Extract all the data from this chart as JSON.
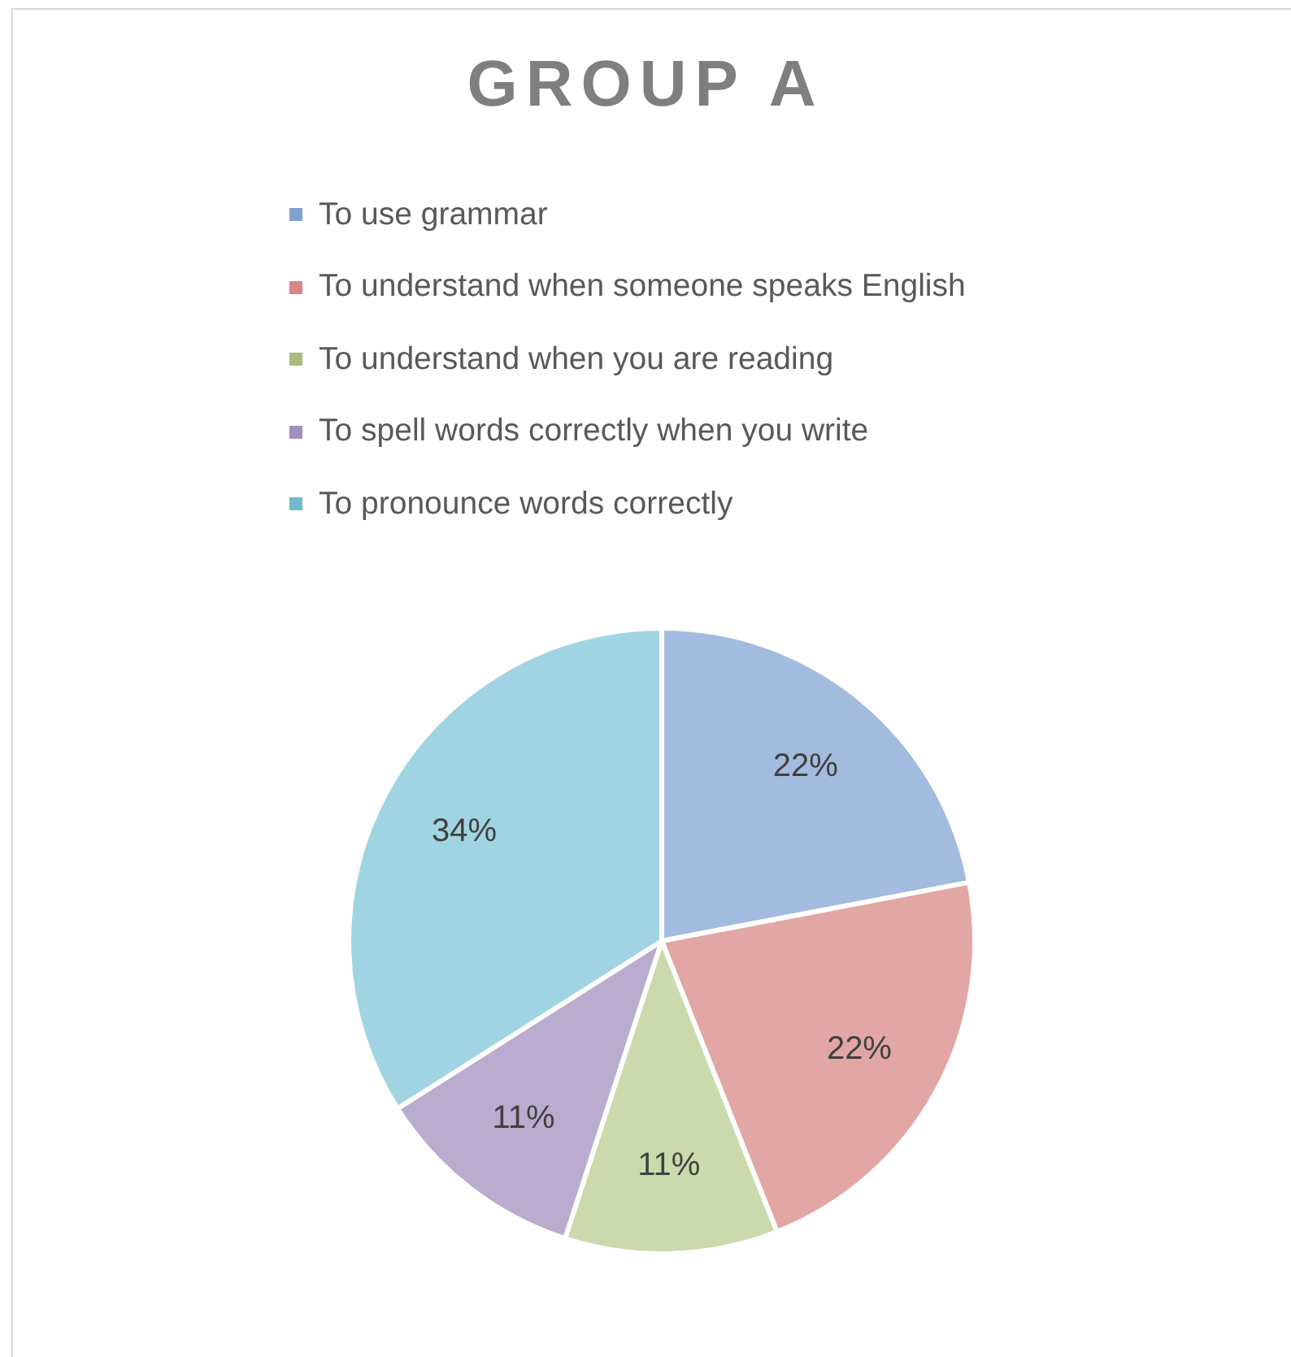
{
  "chart_data": {
    "type": "pie",
    "title": "GROUP A",
    "categories": [
      "To use grammar",
      "To understand when someone speaks English",
      "To understand when you are reading",
      "To spell words correctly when you write",
      "To pronounce words correctly"
    ],
    "values": [
      22,
      22,
      11,
      11,
      34
    ],
    "colors": [
      "#a3bbde",
      "#e2a6a5",
      "#cadaad",
      "#baaccf",
      "#a0d4e2"
    ],
    "value_labels": [
      "22%",
      "22%",
      "11%",
      "11%",
      "34%"
    ],
    "legend": "top"
  }
}
